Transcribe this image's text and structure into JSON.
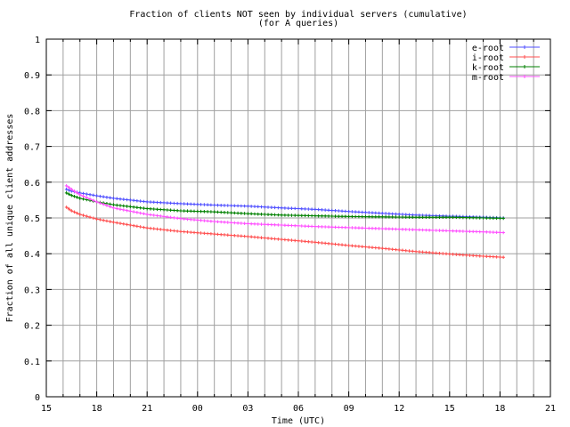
{
  "chart_data": {
    "type": "line",
    "title_line1": "Fraction of clients NOT seen by individual servers (cumulative)",
    "title_line2": "(for A queries)",
    "xlabel": "Time (UTC)",
    "ylabel": "Fraction of all unique client addresses",
    "x_tick_labels": [
      "15",
      "18",
      "21",
      "00",
      "03",
      "06",
      "09",
      "12",
      "15",
      "18",
      "21"
    ],
    "x_range_hours": [
      0,
      30
    ],
    "ylim": [
      0,
      1
    ],
    "y_ticks": [
      "0",
      "0.1",
      "0.2",
      "0.3",
      "0.4",
      "0.5",
      "0.6",
      "0.7",
      "0.8",
      "0.9",
      "1"
    ],
    "grid": true,
    "legend_position": "top-right",
    "series": [
      {
        "name": "e-root",
        "color": "#4f4fff",
        "x": [
          1.2,
          1.5,
          2,
          3,
          4,
          6,
          8,
          10,
          12,
          14,
          16,
          18,
          20,
          22,
          24,
          26,
          27.2
        ],
        "y": [
          0.58,
          0.575,
          0.57,
          0.562,
          0.555,
          0.545,
          0.54,
          0.536,
          0.533,
          0.528,
          0.524,
          0.518,
          0.513,
          0.508,
          0.505,
          0.502,
          0.5
        ]
      },
      {
        "name": "i-root",
        "color": "#ff4f4f",
        "x": [
          1.2,
          1.5,
          2,
          3,
          4,
          6,
          8,
          10,
          12,
          14,
          16,
          18,
          20,
          22,
          24,
          26,
          27.2
        ],
        "y": [
          0.53,
          0.52,
          0.51,
          0.497,
          0.488,
          0.472,
          0.462,
          0.455,
          0.448,
          0.44,
          0.432,
          0.423,
          0.415,
          0.406,
          0.399,
          0.393,
          0.39
        ]
      },
      {
        "name": "k-root",
        "color": "#008000",
        "x": [
          1.2,
          1.5,
          2,
          3,
          4,
          6,
          8,
          10,
          12,
          14,
          16,
          18,
          20,
          22,
          24,
          26,
          27.2
        ],
        "y": [
          0.57,
          0.563,
          0.555,
          0.545,
          0.537,
          0.526,
          0.52,
          0.517,
          0.512,
          0.508,
          0.506,
          0.504,
          0.503,
          0.502,
          0.502,
          0.5,
          0.499
        ]
      },
      {
        "name": "m-root",
        "color": "#ff4fff",
        "x": [
          1.2,
          1.5,
          2,
          3,
          4,
          6,
          8,
          10,
          12,
          14,
          16,
          18,
          20,
          22,
          24,
          26,
          27.2
        ],
        "y": [
          0.59,
          0.58,
          0.565,
          0.545,
          0.528,
          0.51,
          0.498,
          0.49,
          0.484,
          0.48,
          0.476,
          0.473,
          0.47,
          0.467,
          0.464,
          0.461,
          0.459
        ]
      }
    ]
  }
}
